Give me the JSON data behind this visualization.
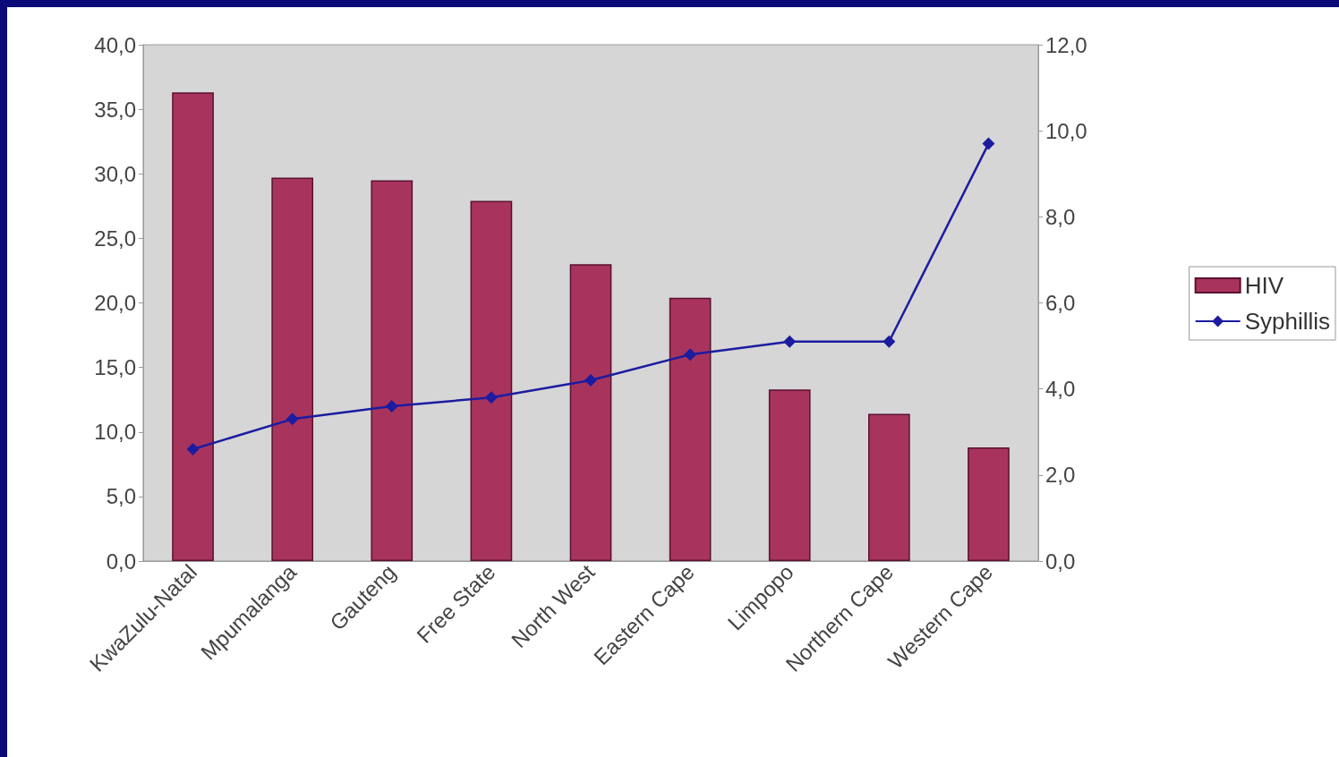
{
  "chart_data": {
    "type": "bar",
    "categories": [
      "KwaZulu-Natal",
      "Mpumalanga",
      "Gauteng",
      "Free State",
      "North West",
      "Eastern Cape",
      "Limpopo",
      "Northern Cape",
      "Western Cape"
    ],
    "series": [
      {
        "name": "HIV",
        "color": "#a8345e",
        "values": [
          36.3,
          29.7,
          29.5,
          27.9,
          23.0,
          20.4,
          13.3,
          11.4,
          8.8
        ]
      },
      {
        "name": "Syphillis",
        "type": "line",
        "axis": "y2",
        "color": "#1c1ca0",
        "marker": "diamond",
        "values": [
          2.6,
          3.3,
          3.6,
          3.8,
          4.2,
          4.8,
          5.1,
          5.1,
          9.7
        ]
      }
    ],
    "ylim": [
      0,
      40
    ],
    "yticks": [
      {
        "value": 0,
        "label": "0,0"
      },
      {
        "value": 5,
        "label": "5,0"
      },
      {
        "value": 10,
        "label": "10,0"
      },
      {
        "value": 15,
        "label": "15,0"
      },
      {
        "value": 20,
        "label": "20,0"
      },
      {
        "value": 25,
        "label": "25,0"
      },
      {
        "value": 30,
        "label": "30,0"
      },
      {
        "value": 35,
        "label": "35,0"
      },
      {
        "value": 40,
        "label": "40,0"
      }
    ],
    "y2lim": [
      0,
      12
    ],
    "y2ticks": [
      {
        "value": 0,
        "label": "0,0"
      },
      {
        "value": 2,
        "label": "2,0"
      },
      {
        "value": 4,
        "label": "4,0"
      },
      {
        "value": 6,
        "label": "6,0"
      },
      {
        "value": 8,
        "label": "8,0"
      },
      {
        "value": 10,
        "label": "10,0"
      },
      {
        "value": 12,
        "label": "12,0"
      }
    ],
    "grid": false,
    "legend": "right"
  }
}
